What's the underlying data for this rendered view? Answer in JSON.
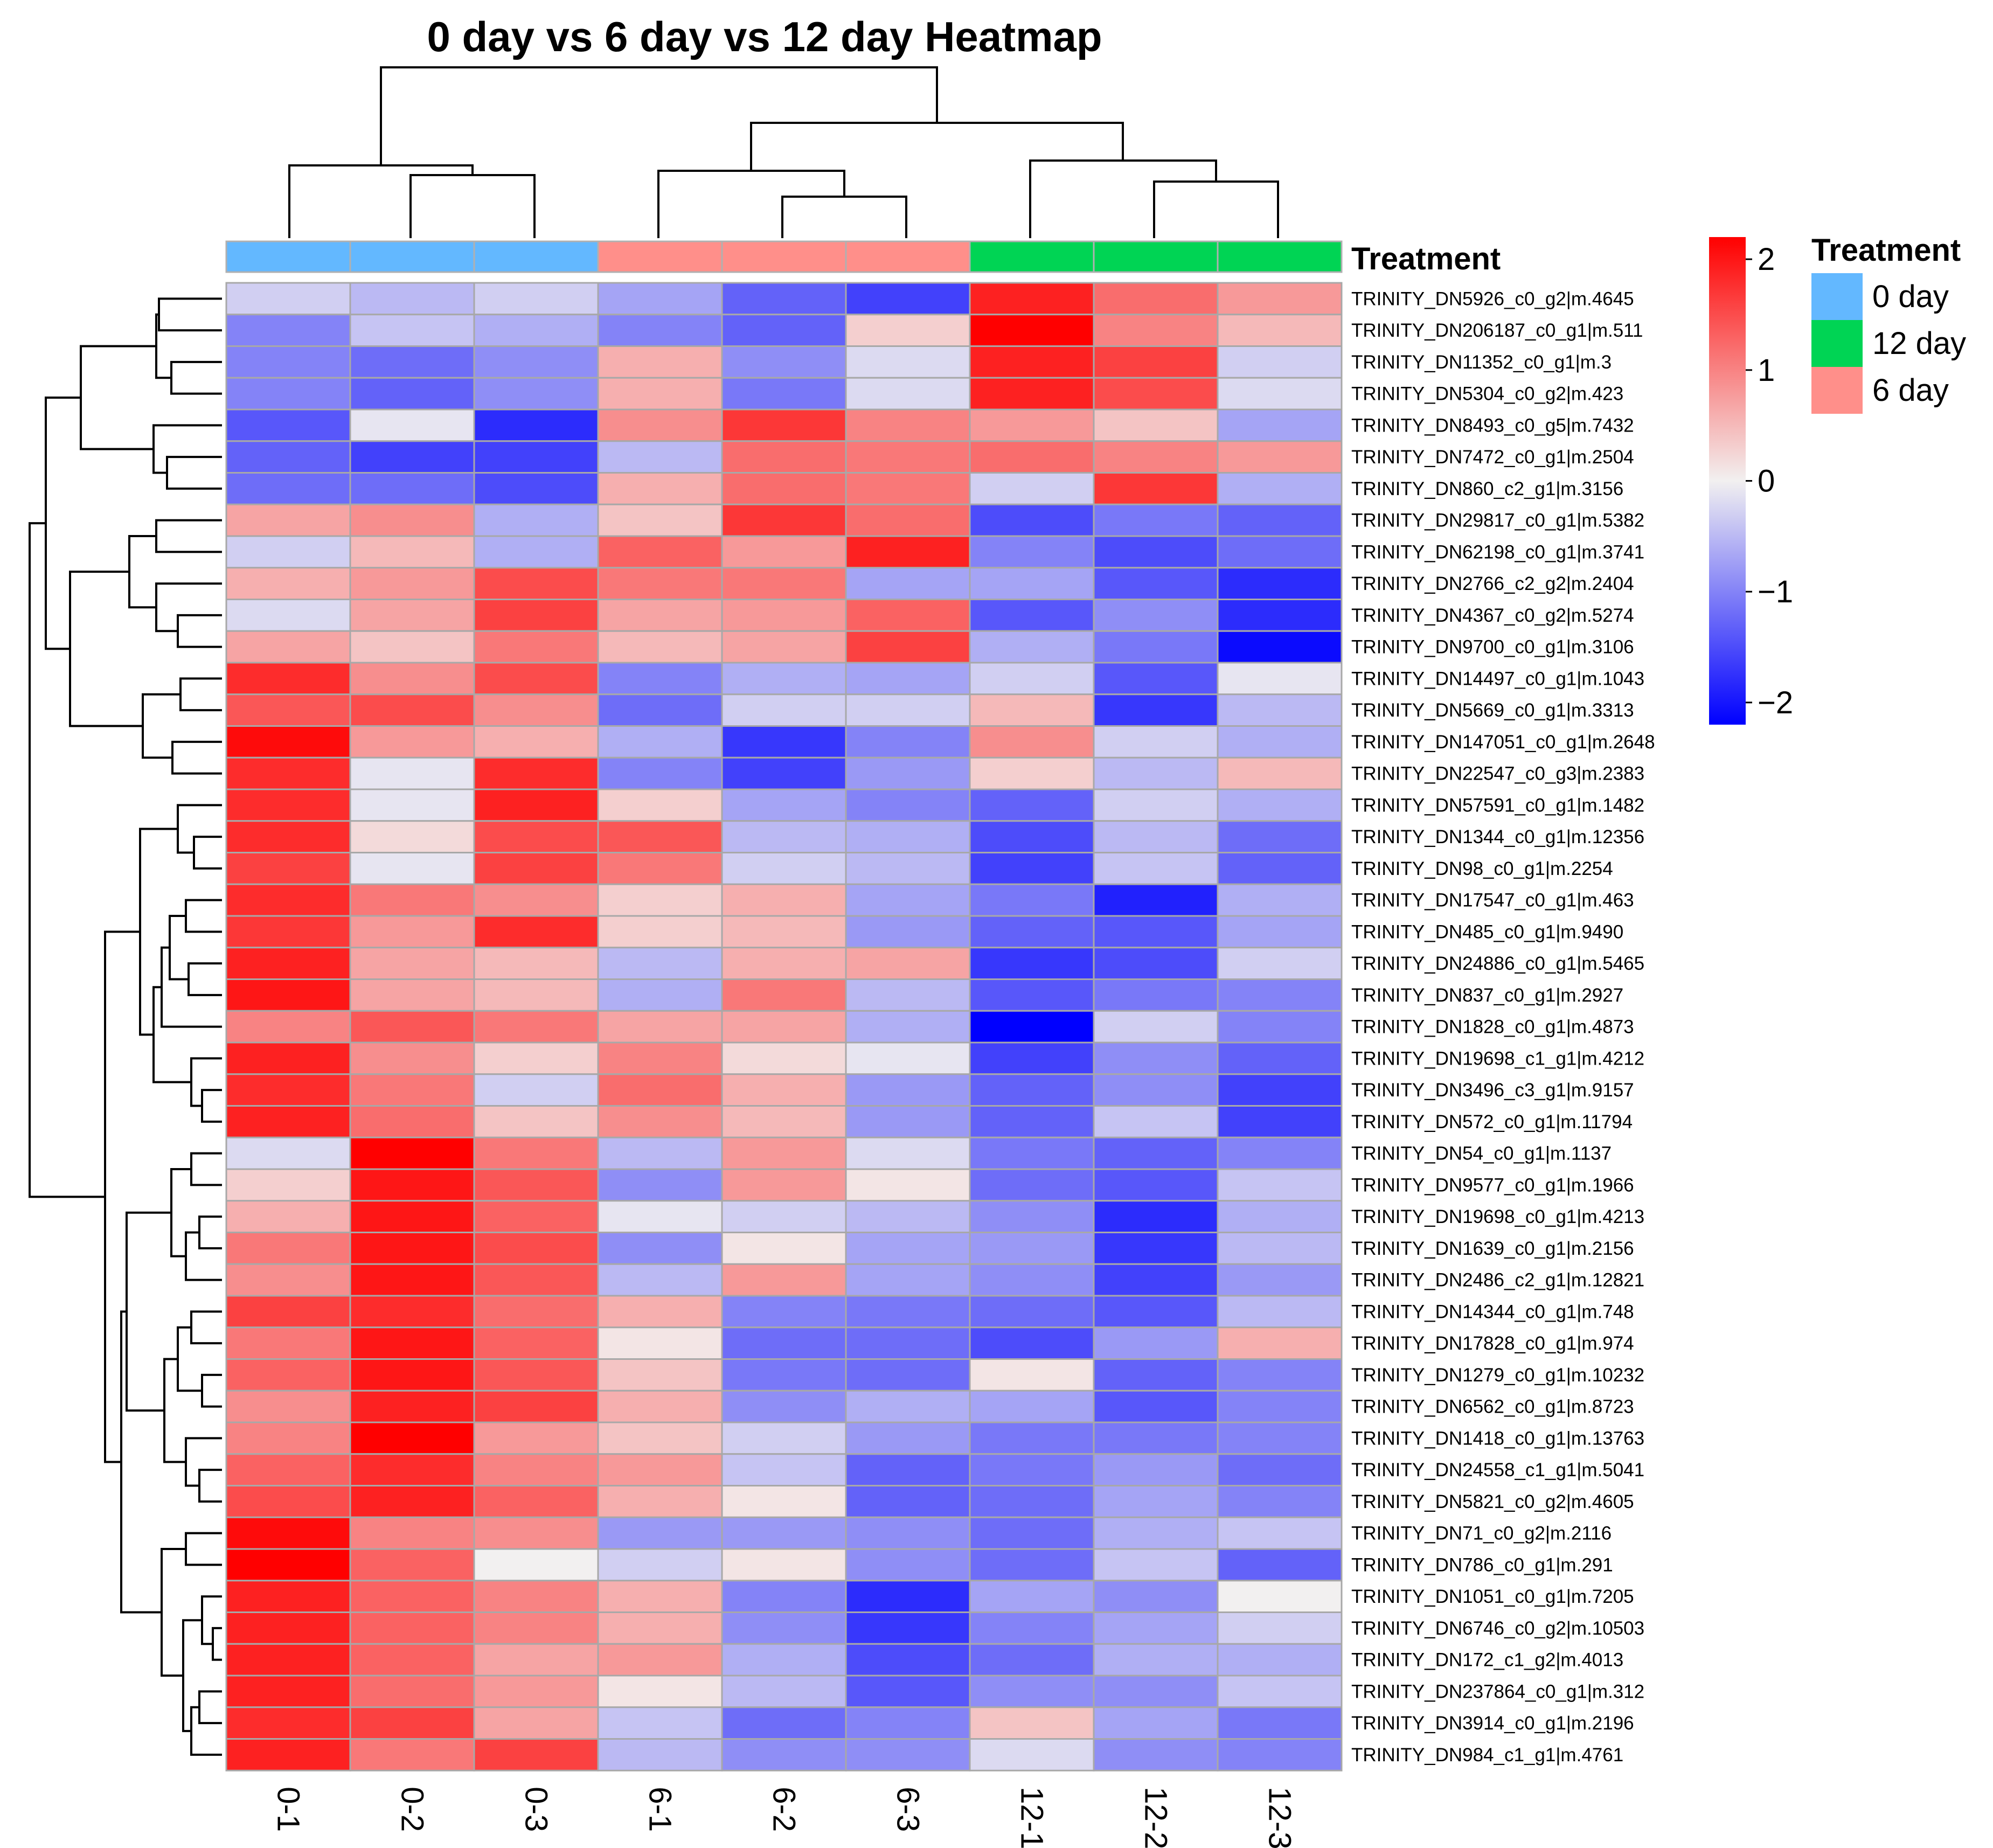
{
  "chart_data": {
    "type": "heatmap",
    "title": "0 day vs 6 day vs 12 day Heatmap",
    "columns": [
      "0-1",
      "0-2",
      "0-3",
      "6-1",
      "6-2",
      "6-3",
      "12-1",
      "12-2",
      "12-3"
    ],
    "column_treatment": [
      "0 day",
      "0 day",
      "0 day",
      "6 day",
      "6 day",
      "6 day",
      "12 day",
      "12 day",
      "12 day"
    ],
    "annotation_label": "Treatment",
    "legend": {
      "title": "Treatment",
      "entries": [
        {
          "label": "0 day",
          "color": "#63b8ff"
        },
        {
          "label": "12 day",
          "color": "#00d454"
        },
        {
          "label": "6 day",
          "color": "#ff8f8a"
        }
      ]
    },
    "color_scale": {
      "min": -2.2,
      "max": 2.2,
      "low_color": "#0000ff",
      "mid_color": "#f2f0f0",
      "high_color": "#ff0000",
      "ticks": [
        {
          "value": 2,
          "label": "2"
        },
        {
          "value": 1,
          "label": "1"
        },
        {
          "value": 0,
          "label": "0"
        },
        {
          "value": -1,
          "label": "−1"
        },
        {
          "value": -2,
          "label": "−2"
        }
      ]
    },
    "rows": [
      {
        "gene": "TRINITY_DN5926_c0_g2|m.4645",
        "values": [
          -0.3,
          -0.5,
          -0.3,
          -0.7,
          -1.3,
          -1.6,
          1.9,
          1.2,
          0.8
        ]
      },
      {
        "gene": "TRINITY_DN206187_c0_g1|m.511",
        "values": [
          -1.0,
          -0.4,
          -0.6,
          -1.0,
          -1.3,
          0.3,
          2.2,
          1.0,
          0.5
        ]
      },
      {
        "gene": "TRINITY_DN11352_c0_g1|m.3",
        "values": [
          -1.0,
          -1.2,
          -0.9,
          0.6,
          -0.9,
          -0.2,
          1.9,
          1.6,
          -0.3
        ]
      },
      {
        "gene": "TRINITY_DN5304_c0_g2|m.423",
        "values": [
          -1.0,
          -1.3,
          -0.9,
          0.6,
          -1.1,
          -0.2,
          1.9,
          1.5,
          -0.2
        ]
      },
      {
        "gene": "TRINITY_DN8493_c0_g5|m.7432",
        "values": [
          -1.4,
          -0.1,
          -1.8,
          0.9,
          1.7,
          1.0,
          0.8,
          0.4,
          -0.7
        ]
      },
      {
        "gene": "TRINITY_DN7472_c0_g1|m.2504",
        "values": [
          -1.3,
          -1.6,
          -1.6,
          -0.5,
          1.2,
          1.1,
          1.2,
          1.0,
          0.8
        ]
      },
      {
        "gene": "TRINITY_DN860_c2_g1|m.3156",
        "values": [
          -1.2,
          -1.2,
          -1.5,
          0.6,
          1.2,
          1.1,
          -0.3,
          1.7,
          -0.6
        ]
      },
      {
        "gene": "TRINITY_DN29817_c0_g1|m.5382",
        "values": [
          0.7,
          0.9,
          -0.6,
          0.4,
          1.7,
          1.2,
          -1.5,
          -1.1,
          -1.3
        ]
      },
      {
        "gene": "TRINITY_DN62198_c0_g1|m.3741",
        "values": [
          -0.3,
          0.5,
          -0.6,
          1.3,
          0.8,
          1.9,
          -1.0,
          -1.5,
          -1.2
        ]
      },
      {
        "gene": "TRINITY_DN2766_c2_g2|m.2404",
        "values": [
          0.6,
          0.8,
          1.5,
          1.1,
          1.1,
          -0.7,
          -0.7,
          -1.4,
          -1.8
        ]
      },
      {
        "gene": "TRINITY_DN4367_c0_g2|m.5274",
        "values": [
          -0.2,
          0.7,
          1.6,
          0.7,
          0.8,
          1.3,
          -1.4,
          -0.9,
          -1.8
        ]
      },
      {
        "gene": "TRINITY_DN9700_c0_g1|m.3106",
        "values": [
          0.7,
          0.4,
          1.1,
          0.5,
          0.7,
          1.6,
          -0.6,
          -1.1,
          -2.1
        ]
      },
      {
        "gene": "TRINITY_DN14497_c0_g1|m.1043",
        "values": [
          1.8,
          0.9,
          1.5,
          -1.0,
          -0.6,
          -0.7,
          -0.3,
          -1.4,
          -0.1
        ]
      },
      {
        "gene": "TRINITY_DN5669_c0_g1|m.3313",
        "values": [
          1.4,
          1.5,
          0.9,
          -1.2,
          -0.3,
          -0.3,
          0.5,
          -1.7,
          -0.5
        ]
      },
      {
        "gene": "TRINITY_DN147051_c0_g1|m.2648",
        "values": [
          2.1,
          0.8,
          0.6,
          -0.6,
          -1.7,
          -1.0,
          0.9,
          -0.3,
          -0.6
        ]
      },
      {
        "gene": "TRINITY_DN22547_c0_g3|m.2383",
        "values": [
          1.8,
          -0.1,
          1.8,
          -1.0,
          -1.6,
          -0.8,
          0.3,
          -0.5,
          0.5
        ]
      },
      {
        "gene": "TRINITY_DN57591_c0_g1|m.1482",
        "values": [
          1.8,
          -0.1,
          1.9,
          0.3,
          -0.7,
          -1.0,
          -1.3,
          -0.3,
          -0.6
        ]
      },
      {
        "gene": "TRINITY_DN1344_c0_g1|m.12356",
        "values": [
          1.8,
          0.2,
          1.5,
          1.4,
          -0.5,
          -0.6,
          -1.5,
          -0.5,
          -1.2
        ]
      },
      {
        "gene": "TRINITY_DN98_c0_g1|m.2254",
        "values": [
          1.6,
          -0.1,
          1.6,
          1.1,
          -0.3,
          -0.5,
          -1.6,
          -0.4,
          -1.3
        ]
      },
      {
        "gene": "TRINITY_DN17547_c0_g1|m.463",
        "values": [
          1.8,
          1.1,
          0.9,
          0.3,
          0.6,
          -0.7,
          -1.1,
          -1.9,
          -0.6
        ]
      },
      {
        "gene": "TRINITY_DN485_c0_g1|m.9490",
        "values": [
          1.7,
          0.8,
          1.8,
          0.3,
          0.5,
          -0.8,
          -1.3,
          -1.4,
          -0.7
        ]
      },
      {
        "gene": "TRINITY_DN24886_c0_g1|m.5465",
        "values": [
          1.9,
          0.7,
          0.5,
          -0.5,
          0.6,
          0.7,
          -1.7,
          -1.5,
          -0.3
        ]
      },
      {
        "gene": "TRINITY_DN837_c0_g1|m.2927",
        "values": [
          2.0,
          0.7,
          0.5,
          -0.6,
          1.1,
          -0.5,
          -1.4,
          -1.1,
          -1.0
        ]
      },
      {
        "gene": "TRINITY_DN1828_c0_g1|m.4873",
        "values": [
          1.0,
          1.4,
          1.1,
          0.7,
          0.7,
          -0.6,
          -2.2,
          -0.3,
          -1.0
        ]
      },
      {
        "gene": "TRINITY_DN19698_c1_g1|m.4212",
        "values": [
          1.9,
          0.9,
          0.3,
          1.0,
          0.2,
          -0.1,
          -1.6,
          -0.9,
          -1.3
        ]
      },
      {
        "gene": "TRINITY_DN3496_c3_g1|m.9157",
        "values": [
          1.8,
          1.1,
          -0.3,
          1.2,
          0.6,
          -0.8,
          -1.3,
          -0.9,
          -1.6
        ]
      },
      {
        "gene": "TRINITY_DN572_c0_g1|m.11794",
        "values": [
          1.9,
          1.2,
          0.4,
          0.9,
          0.5,
          -0.8,
          -1.3,
          -0.4,
          -1.6
        ]
      },
      {
        "gene": "TRINITY_DN54_c0_g1|m.1137",
        "values": [
          -0.2,
          2.2,
          1.1,
          -0.5,
          0.8,
          -0.2,
          -1.1,
          -1.3,
          -1.0
        ]
      },
      {
        "gene": "TRINITY_DN9577_c0_g1|m.1966",
        "values": [
          0.3,
          2.0,
          1.4,
          -0.9,
          0.8,
          0.1,
          -1.2,
          -1.4,
          -0.4
        ]
      },
      {
        "gene": "TRINITY_DN19698_c0_g1|m.4213",
        "values": [
          0.6,
          2.0,
          1.3,
          -0.1,
          -0.3,
          -0.5,
          -0.9,
          -1.8,
          -0.6
        ]
      },
      {
        "gene": "TRINITY_DN1639_c0_g1|m.2156",
        "values": [
          1.1,
          2.0,
          1.5,
          -0.9,
          0.1,
          -0.7,
          -0.8,
          -1.7,
          -0.5
        ]
      },
      {
        "gene": "TRINITY_DN2486_c2_g1|m.12821",
        "values": [
          0.9,
          2.0,
          1.4,
          -0.5,
          0.8,
          -0.7,
          -0.9,
          -1.6,
          -0.8
        ]
      },
      {
        "gene": "TRINITY_DN14344_c0_g1|m.748",
        "values": [
          1.6,
          1.8,
          1.2,
          0.6,
          -1.0,
          -1.1,
          -1.2,
          -1.4,
          -0.5
        ]
      },
      {
        "gene": "TRINITY_DN17828_c0_g1|m.974",
        "values": [
          1.1,
          2.0,
          1.3,
          0.1,
          -1.2,
          -1.2,
          -1.5,
          -0.8,
          0.6
        ]
      },
      {
        "gene": "TRINITY_DN1279_c0_g1|m.10232",
        "values": [
          1.3,
          2.0,
          1.4,
          0.4,
          -1.1,
          -1.2,
          0.1,
          -1.3,
          -1.0
        ]
      },
      {
        "gene": "TRINITY_DN6562_c0_g1|m.8723",
        "values": [
          0.9,
          1.9,
          1.6,
          0.6,
          -0.9,
          -0.6,
          -0.7,
          -1.4,
          -1.0
        ]
      },
      {
        "gene": "TRINITY_DN1418_c0_g1|m.13763",
        "values": [
          1.0,
          2.2,
          0.8,
          0.4,
          -0.3,
          -0.8,
          -1.1,
          -1.1,
          -1.0
        ]
      },
      {
        "gene": "TRINITY_DN24558_c1_g1|m.5041",
        "values": [
          1.3,
          1.8,
          1.0,
          0.8,
          -0.4,
          -1.3,
          -1.1,
          -0.8,
          -1.2
        ]
      },
      {
        "gene": "TRINITY_DN5821_c0_g2|m.4605",
        "values": [
          1.5,
          1.9,
          1.3,
          0.6,
          0.1,
          -1.3,
          -1.2,
          -0.7,
          -1.0
        ]
      },
      {
        "gene": "TRINITY_DN71_c0_g2|m.2116",
        "values": [
          2.1,
          1.0,
          0.9,
          -0.8,
          -0.8,
          -0.9,
          -1.2,
          -0.6,
          -0.4
        ]
      },
      {
        "gene": "TRINITY_DN786_c0_g1|m.291",
        "values": [
          2.2,
          1.3,
          0.0,
          -0.3,
          0.1,
          -0.9,
          -1.2,
          -0.4,
          -1.3
        ]
      },
      {
        "gene": "TRINITY_DN1051_c0_g1|m.7205",
        "values": [
          1.9,
          1.3,
          1.0,
          0.6,
          -1.0,
          -1.8,
          -0.7,
          -0.9,
          0.0
        ]
      },
      {
        "gene": "TRINITY_DN6746_c0_g2|m.10503",
        "values": [
          1.9,
          1.3,
          1.0,
          0.6,
          -0.9,
          -1.7,
          -1.0,
          -0.7,
          -0.3
        ]
      },
      {
        "gene": "TRINITY_DN172_c1_g2|m.4013",
        "values": [
          1.9,
          1.3,
          0.7,
          0.8,
          -0.6,
          -1.5,
          -1.2,
          -0.6,
          -0.6
        ]
      },
      {
        "gene": "TRINITY_DN237864_c0_g1|m.312",
        "values": [
          1.9,
          1.2,
          0.8,
          0.1,
          -0.5,
          -1.4,
          -0.9,
          -0.9,
          -0.4
        ]
      },
      {
        "gene": "TRINITY_DN3914_c0_g1|m.2196",
        "values": [
          1.8,
          1.6,
          0.7,
          -0.4,
          -1.2,
          -1.0,
          0.4,
          -0.7,
          -1.1
        ]
      },
      {
        "gene": "TRINITY_DN984_c1_g1|m.4761",
        "values": [
          1.9,
          1.1,
          1.6,
          -0.5,
          -0.9,
          -0.9,
          -0.2,
          -0.9,
          -1.0
        ]
      }
    ]
  }
}
